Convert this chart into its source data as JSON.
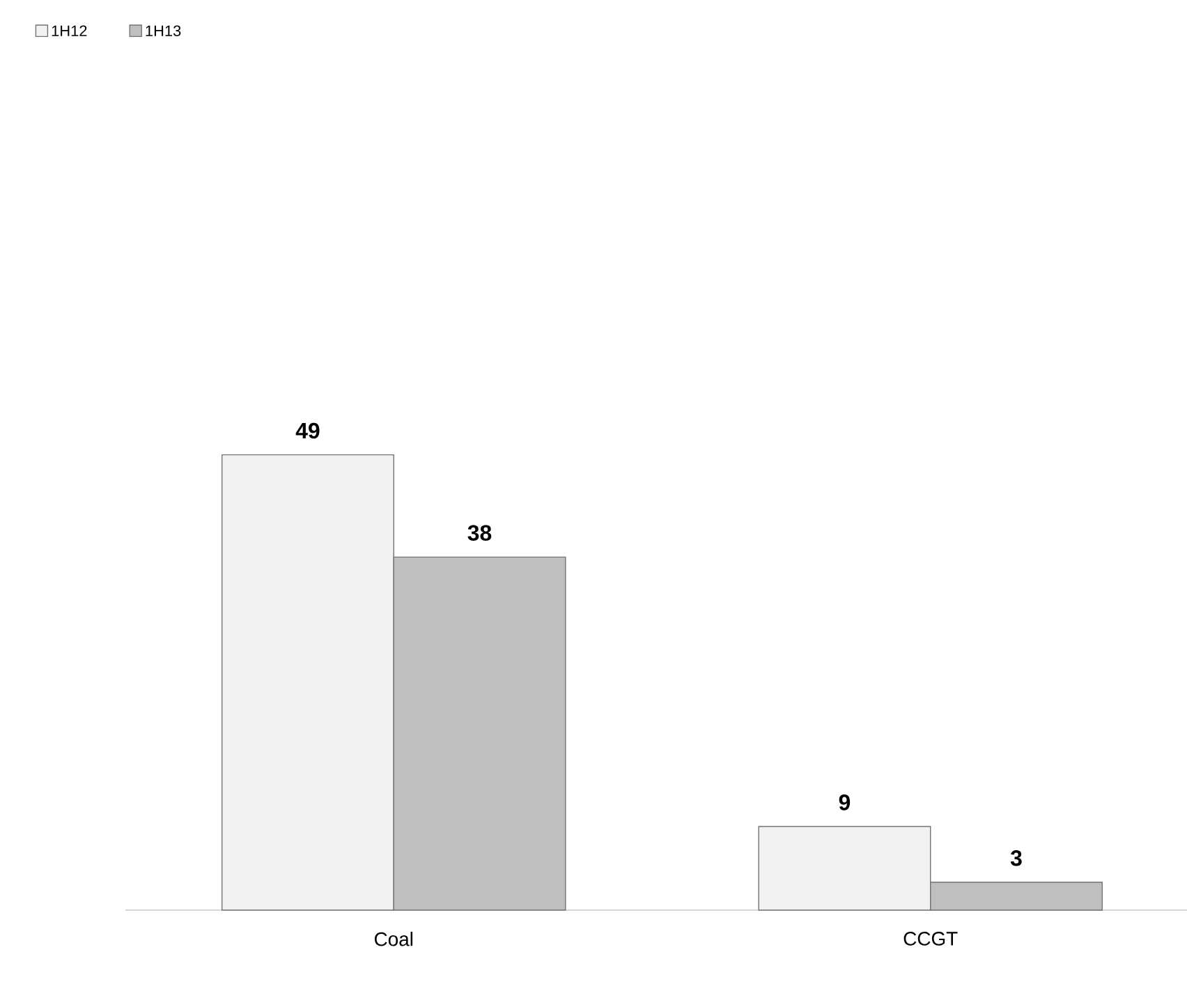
{
  "chart_data": {
    "type": "bar",
    "categories": [
      "Coal",
      "CCGT"
    ],
    "series": [
      {
        "name": "1H12",
        "color": "#f2f2f2",
        "values": [
          49,
          9
        ]
      },
      {
        "name": "1H13",
        "color": "#bfbfbf",
        "values": [
          38,
          3
        ]
      }
    ],
    "data_labels": true,
    "legend": "top left"
  }
}
